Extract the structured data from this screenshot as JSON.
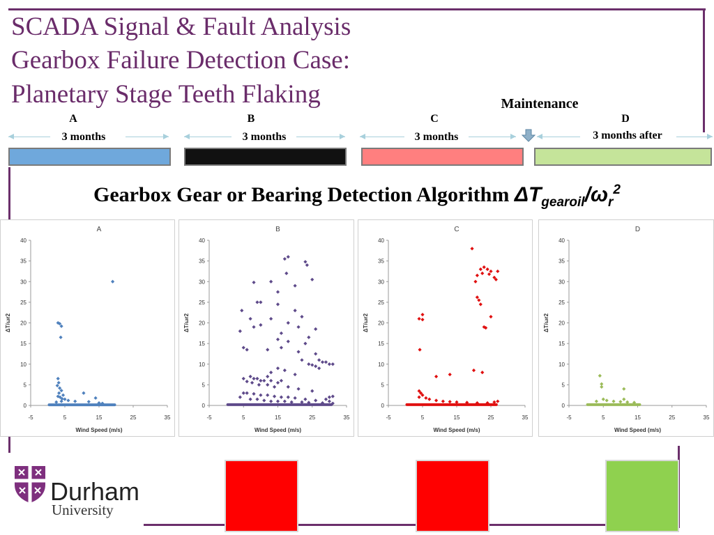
{
  "title": {
    "line1": "SCADA Signal & Fault Analysis",
    "line2": "Gearbox Failure Detection Case:",
    "line3": "Planetary Stage Teeth Flaking"
  },
  "maintenance_label": "Maintenance",
  "phases": [
    {
      "letter": "A",
      "duration": "3 months",
      "color": "#6fa8dc"
    },
    {
      "letter": "B",
      "duration": "3 months",
      "color": "#111111"
    },
    {
      "letter": "C",
      "duration": "3 months",
      "color": "#ff7f7f"
    },
    {
      "letter": "D",
      "duration": "3 months after",
      "color": "#c5e49a"
    }
  ],
  "algorithm": {
    "prefix": "Gearbox Gear or Bearing Detection Algorithm",
    "delta_t": "ΔT",
    "t_sub": "gearoil",
    "slash": "/",
    "omega": "ω",
    "omega_sub": "r",
    "power": "2"
  },
  "status_squares": [
    {
      "name": "status-square-b",
      "color": "#ff0000"
    },
    {
      "name": "status-square-c",
      "color": "#ff0000"
    },
    {
      "name": "status-square-d",
      "color": "#8fd14f"
    }
  ],
  "logo": {
    "name": "Durham",
    "subtitle": "University"
  },
  "chart_data": [
    {
      "type": "scatter",
      "title": "A",
      "xlabel": "Wind Speed (m/s)",
      "ylabel": "ΔT/ωr2",
      "xlim": [
        -5,
        35
      ],
      "ylim": [
        0,
        40
      ],
      "xticks": [
        -5,
        5,
        15,
        25,
        35
      ],
      "yticks": [
        0,
        5,
        10,
        15,
        20,
        25,
        30,
        35,
        40
      ],
      "color": "#4f81bd",
      "points": [
        [
          19,
          30
        ],
        [
          3,
          20
        ],
        [
          3.5,
          19.8
        ],
        [
          4,
          19.2
        ],
        [
          3.8,
          16.5
        ],
        [
          3,
          6.5
        ],
        [
          3.2,
          5.5
        ],
        [
          2.8,
          4.8
        ],
        [
          3.5,
          4.2
        ],
        [
          4,
          3.6
        ],
        [
          3.3,
          3
        ],
        [
          4.5,
          2.5
        ],
        [
          3,
          2.2
        ],
        [
          10.5,
          3
        ],
        [
          14,
          1.8
        ],
        [
          5,
          1.5
        ],
        [
          6,
          1.2
        ],
        [
          8,
          1
        ],
        [
          12,
          0.9
        ],
        [
          4,
          1
        ],
        [
          2.5,
          0.8
        ],
        [
          15,
          0.6
        ],
        [
          16,
          0.5
        ],
        [
          3.6,
          2
        ],
        [
          4.2,
          1.6
        ]
      ],
      "baseline": {
        "from": 0,
        "to": 20,
        "y": 0.15
      }
    },
    {
      "type": "scatter",
      "title": "B",
      "xlabel": "Wind Speed (m/s)",
      "ylabel": "ΔT/ωr2",
      "xlim": [
        -5,
        35
      ],
      "ylim": [
        0,
        40
      ],
      "xticks": [
        -5,
        5,
        15,
        25,
        35
      ],
      "yticks": [
        0,
        5,
        10,
        15,
        20,
        25,
        30,
        35,
        40
      ],
      "color": "#5e4a8a",
      "points": [
        [
          18,
          36
        ],
        [
          17,
          35.5
        ],
        [
          23,
          34.8
        ],
        [
          23.5,
          34
        ],
        [
          17.5,
          32
        ],
        [
          13,
          30
        ],
        [
          25,
          30.5
        ],
        [
          8,
          29.8
        ],
        [
          20,
          29
        ],
        [
          15,
          27.5
        ],
        [
          9,
          25
        ],
        [
          10,
          25
        ],
        [
          15,
          24.5
        ],
        [
          4.5,
          23
        ],
        [
          20,
          23
        ],
        [
          22,
          21.5
        ],
        [
          7,
          21
        ],
        [
          13,
          21
        ],
        [
          18,
          20
        ],
        [
          8,
          19
        ],
        [
          10,
          19.5
        ],
        [
          21,
          19
        ],
        [
          26,
          18.5
        ],
        [
          4,
          18
        ],
        [
          16,
          17.5
        ],
        [
          24,
          16.5
        ],
        [
          15,
          16
        ],
        [
          23,
          15
        ],
        [
          18,
          15.5
        ],
        [
          5,
          14
        ],
        [
          16,
          14
        ],
        [
          12,
          13.5
        ],
        [
          6,
          13.5
        ],
        [
          21,
          13
        ],
        [
          26,
          12.5
        ],
        [
          27,
          11
        ],
        [
          22,
          11
        ],
        [
          28,
          10.5
        ],
        [
          29,
          10.5
        ],
        [
          30,
          10
        ],
        [
          31,
          10
        ],
        [
          24,
          10
        ],
        [
          25,
          9.8
        ],
        [
          26,
          9.5
        ],
        [
          27,
          9
        ],
        [
          15,
          9
        ],
        [
          17,
          8.5
        ],
        [
          13,
          8
        ],
        [
          12,
          7
        ],
        [
          20,
          7.5
        ],
        [
          7,
          7
        ],
        [
          8,
          6.5
        ],
        [
          9,
          6.5
        ],
        [
          10,
          6
        ],
        [
          11,
          6
        ],
        [
          13,
          6
        ],
        [
          15,
          5.5
        ],
        [
          16,
          6
        ],
        [
          5,
          6.5
        ],
        [
          6,
          5.8
        ],
        [
          7.5,
          5.5
        ],
        [
          9.5,
          5
        ],
        [
          12,
          5
        ],
        [
          14,
          4.5
        ],
        [
          18,
          4.5
        ],
        [
          21,
          4
        ],
        [
          25,
          3.5
        ],
        [
          5,
          3
        ],
        [
          6,
          3
        ],
        [
          8,
          2.8
        ],
        [
          10,
          2.5
        ],
        [
          12,
          2.5
        ],
        [
          14,
          2.2
        ],
        [
          16,
          2
        ],
        [
          18,
          2
        ],
        [
          20,
          1.8
        ],
        [
          23,
          1.5
        ],
        [
          26,
          1.2
        ],
        [
          30,
          1
        ],
        [
          4,
          2
        ],
        [
          7,
          1.5
        ],
        [
          9,
          1.5
        ],
        [
          11,
          1.2
        ],
        [
          13,
          1
        ],
        [
          15,
          1
        ],
        [
          17,
          1
        ],
        [
          19,
          0.8
        ],
        [
          22,
          0.8
        ],
        [
          24,
          0.7
        ],
        [
          28,
          0.6
        ],
        [
          31,
          0.5
        ],
        [
          30,
          2
        ],
        [
          31,
          2.2
        ],
        [
          29,
          1.5
        ]
      ],
      "baseline": {
        "from": 0,
        "to": 31,
        "y": 0.2
      }
    },
    {
      "type": "scatter",
      "title": "C",
      "xlabel": "Wind Speed (m/s)",
      "ylabel": "ΔT/ωr2",
      "xlim": [
        -5,
        35
      ],
      "ylim": [
        0,
        40
      ],
      "xticks": [
        -5,
        5,
        15,
        25,
        35
      ],
      "yticks": [
        0,
        5,
        10,
        15,
        20,
        25,
        30,
        35,
        40
      ],
      "color": "#e01010",
      "points": [
        [
          19.5,
          38
        ],
        [
          22,
          33
        ],
        [
          23,
          33.5
        ],
        [
          24,
          33
        ],
        [
          25,
          32.5
        ],
        [
          26,
          31
        ],
        [
          21,
          31.5
        ],
        [
          27,
          32.5
        ],
        [
          26.5,
          30.5
        ],
        [
          22.5,
          32
        ],
        [
          24.5,
          31.8
        ],
        [
          20.5,
          30
        ],
        [
          21,
          26.2
        ],
        [
          21.5,
          25.5
        ],
        [
          22,
          24.5
        ],
        [
          25,
          21.5
        ],
        [
          23,
          19
        ],
        [
          23.5,
          18.8
        ],
        [
          5,
          22
        ],
        [
          4,
          21
        ],
        [
          5,
          20.8
        ],
        [
          4.2,
          13.5
        ],
        [
          13,
          7.5
        ],
        [
          9,
          7
        ],
        [
          20,
          8.5
        ],
        [
          22.5,
          8
        ],
        [
          4,
          3.5
        ],
        [
          4.5,
          3
        ],
        [
          5,
          2.5
        ],
        [
          4,
          2
        ],
        [
          6,
          1.8
        ],
        [
          7,
          1.5
        ],
        [
          9,
          1.2
        ],
        [
          11,
          1
        ],
        [
          13,
          0.9
        ],
        [
          15,
          0.8
        ],
        [
          18,
          0.7
        ],
        [
          21,
          0.6
        ],
        [
          24,
          0.6
        ],
        [
          26,
          0.8
        ],
        [
          27,
          1
        ]
      ],
      "baseline": {
        "from": 0,
        "to": 27,
        "y": 0.2
      }
    },
    {
      "type": "scatter",
      "title": "D",
      "xlabel": "Wind Speed (m/s)",
      "ylabel": "ΔT/ωr2",
      "xlim": [
        -5,
        35
      ],
      "ylim": [
        0,
        40
      ],
      "xticks": [
        -5,
        5,
        15,
        25,
        35
      ],
      "yticks": [
        0,
        5,
        10,
        15,
        20,
        25,
        30,
        35,
        40
      ],
      "color": "#9bbb59",
      "points": [
        [
          4,
          7.2
        ],
        [
          4.5,
          5.2
        ],
        [
          4.5,
          4.5
        ],
        [
          11,
          4
        ],
        [
          5,
          1.5
        ],
        [
          6,
          1.2
        ],
        [
          8,
          1
        ],
        [
          10,
          0.9
        ],
        [
          12,
          0.8
        ],
        [
          14,
          0.7
        ],
        [
          3,
          1
        ],
        [
          11,
          1.5
        ]
      ],
      "baseline": {
        "from": 0,
        "to": 16,
        "y": 0.2
      }
    }
  ]
}
